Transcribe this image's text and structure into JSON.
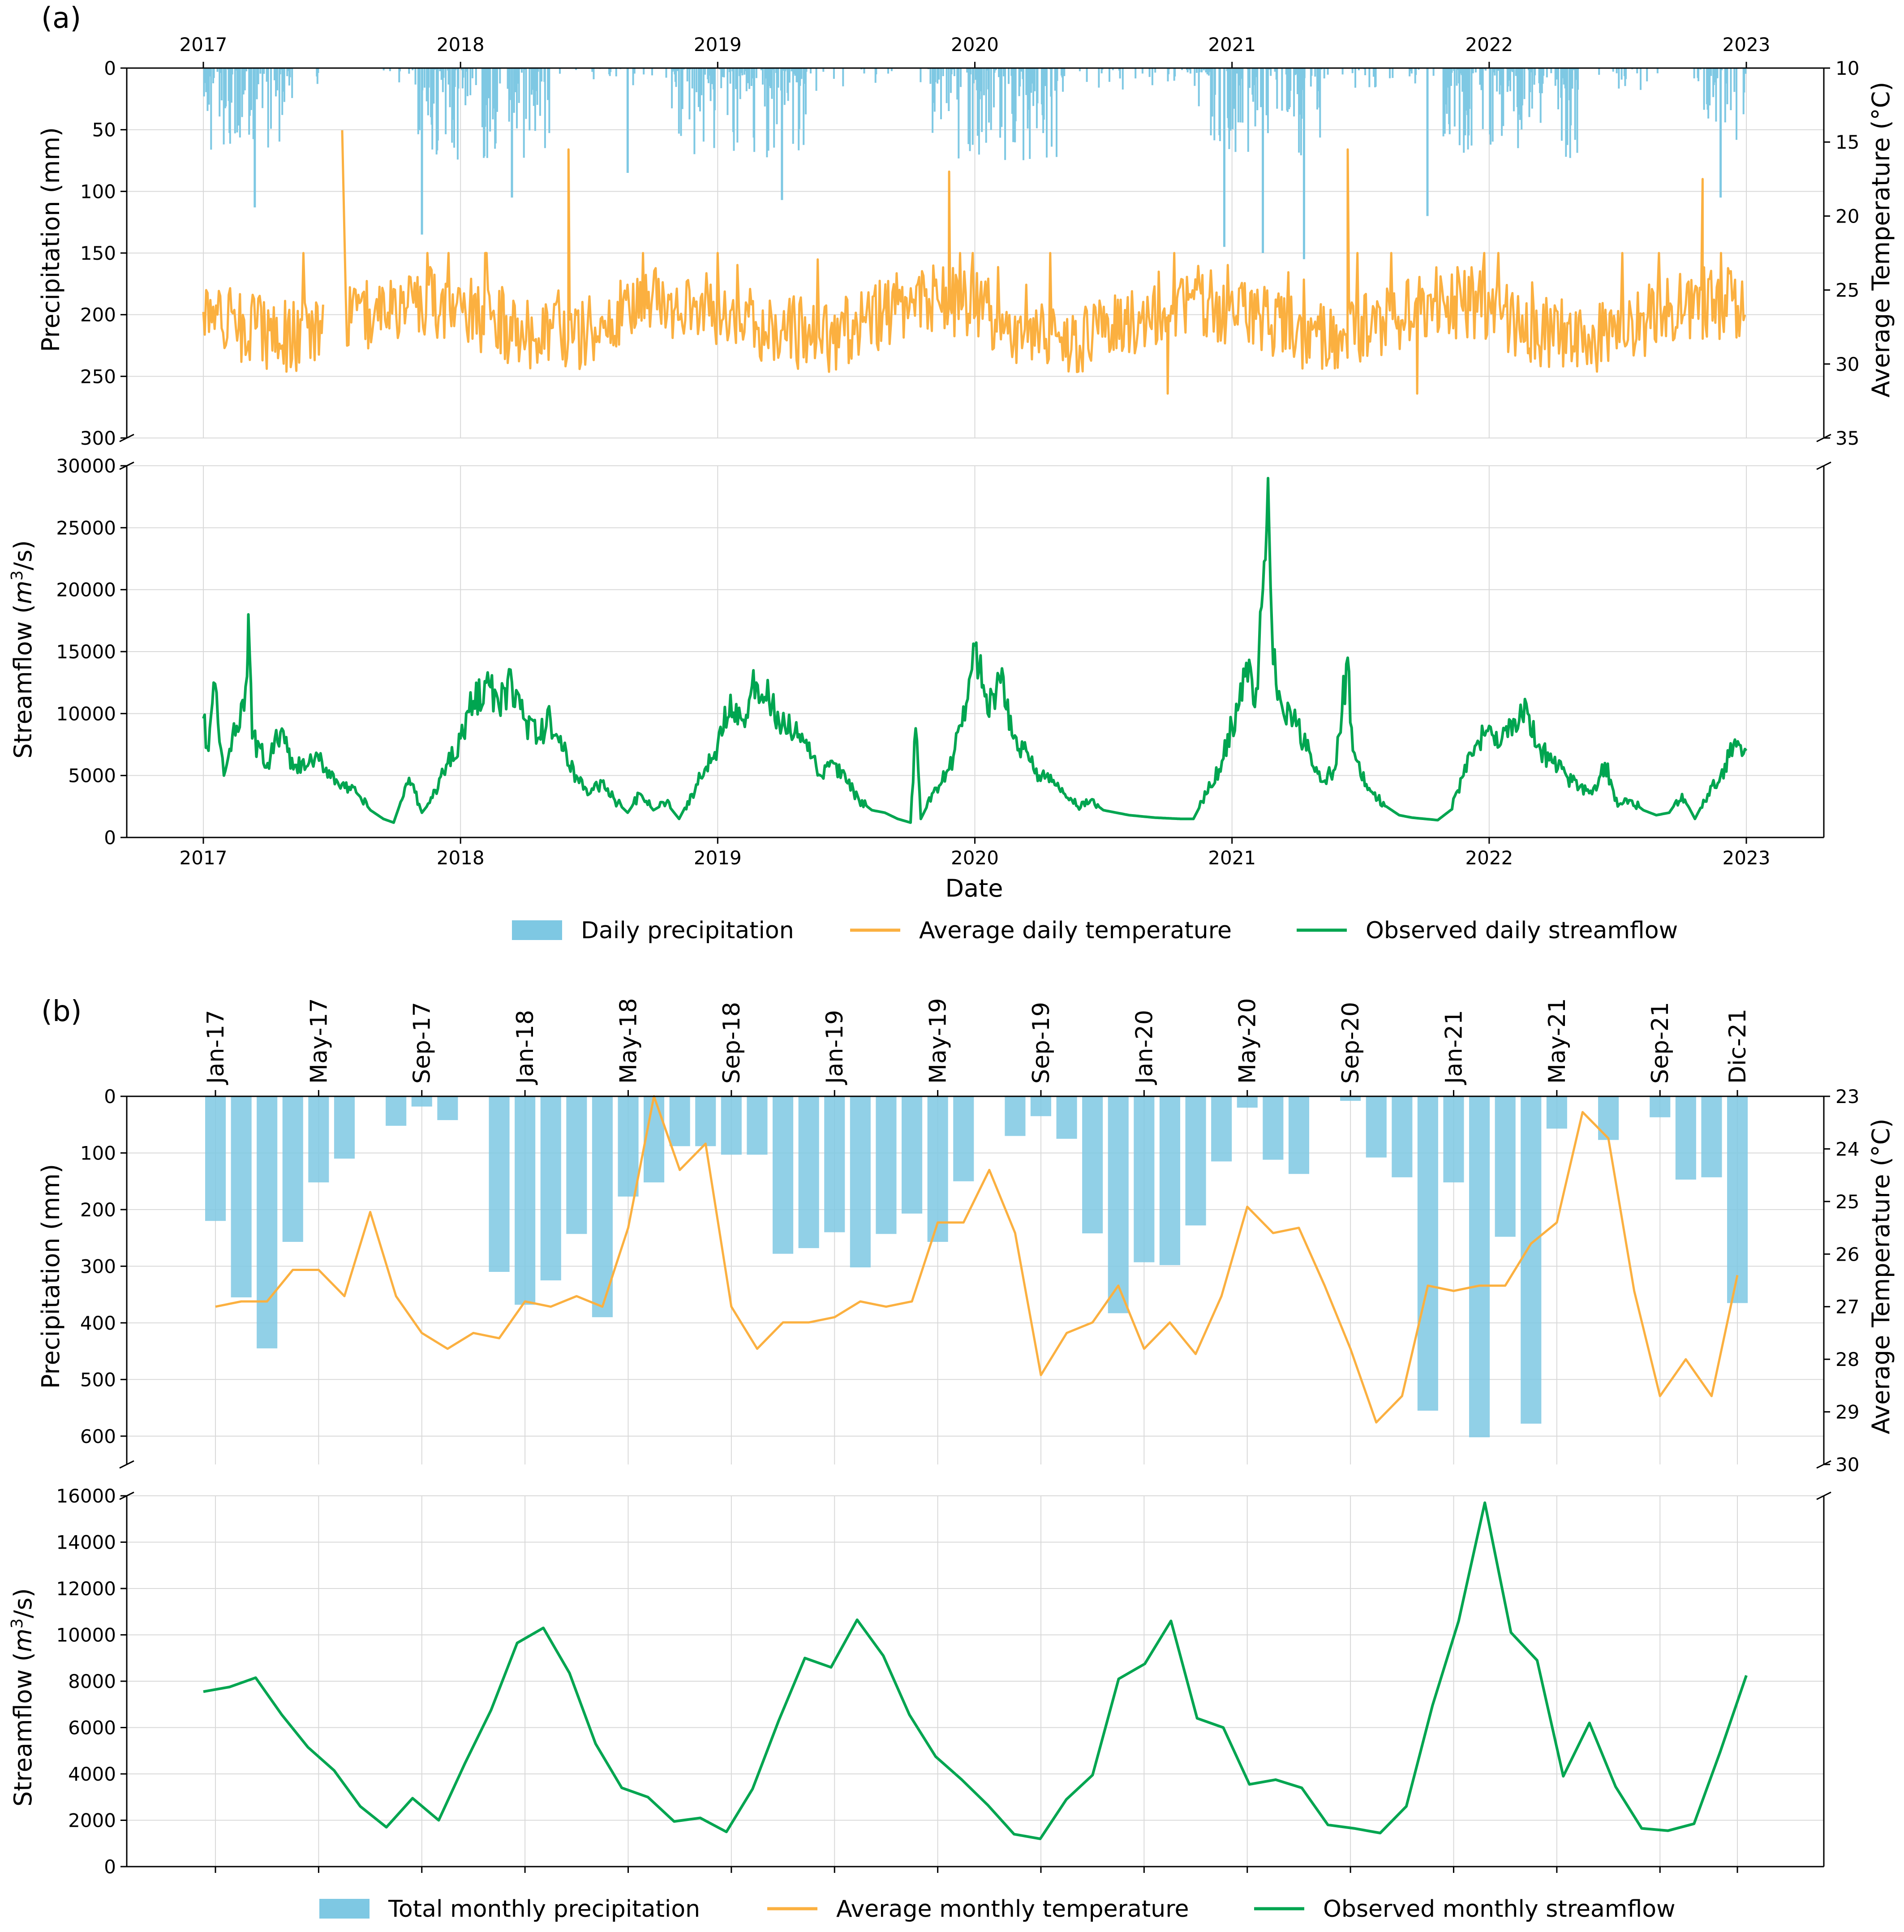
{
  "chart_data": [
    {
      "panel_label": "(a)",
      "type": "line",
      "title": "",
      "top_axis_years": [
        "2017",
        "2018",
        "2019",
        "2020",
        "2021",
        "2022",
        "2023"
      ],
      "precipitation": {
        "type": "bar",
        "ylabel": "Precipitation (mm)",
        "ylim": [
          0,
          300
        ],
        "inverted": true,
        "yticks": [
          0,
          50,
          100,
          150,
          200,
          250,
          300
        ],
        "color": "#7ec8e3",
        "notable_events": [
          {
            "date": 2017.2,
            "value": 113
          },
          {
            "date": 2017.85,
            "value": 135
          },
          {
            "date": 2018.2,
            "value": 105
          },
          {
            "date": 2018.65,
            "value": 85
          },
          {
            "date": 2019.25,
            "value": 107
          },
          {
            "date": 2020.15,
            "value": 60
          },
          {
            "date": 2020.97,
            "value": 145
          },
          {
            "date": 2021.12,
            "value": 150
          },
          {
            "date": 2021.28,
            "value": 155
          },
          {
            "date": 2021.76,
            "value": 120
          },
          {
            "date": 2022.9,
            "value": 105
          }
        ]
      },
      "temperature": {
        "ylabel": "Average Temperature (°C)",
        "ylim": [
          10,
          35
        ],
        "yticks": [
          10,
          15,
          20,
          25,
          30,
          35
        ],
        "color": "#fbb040",
        "typical_range": [
          24,
          30
        ],
        "notable_events": [
          {
            "date": 2017.54,
            "value": 14.2
          },
          {
            "date": 2018.42,
            "value": 15.5
          },
          {
            "date": 2019.9,
            "value": 17
          },
          {
            "date": 2021.45,
            "value": 15.5
          },
          {
            "date": 2022.83,
            "value": 17.5
          },
          {
            "date": 2020.75,
            "value": 32
          },
          {
            "date": 2021.72,
            "value": 32
          }
        ]
      },
      "streamflow": {
        "ylabel": "Streamflow (m³/s)",
        "ylabel_base": "Streamflow (",
        "ylabel_unit_m": "m",
        "ylabel_unit_exp": "3",
        "ylabel_unit_tail": "/s)",
        "xlabel": "Date",
        "ylim": [
          0,
          30000
        ],
        "yticks": [
          0,
          5000,
          10000,
          15000,
          20000,
          25000,
          30000
        ],
        "color": "#00a550",
        "xticks": [
          "2017",
          "2018",
          "2019",
          "2020",
          "2021",
          "2022",
          "2023"
        ],
        "anchors": [
          [
            2017.0,
            9600
          ],
          [
            2017.02,
            7000
          ],
          [
            2017.04,
            12500
          ],
          [
            2017.08,
            5000
          ],
          [
            2017.13,
            9000
          ],
          [
            2017.17,
            13000
          ],
          [
            2017.175,
            18000
          ],
          [
            2017.19,
            8000
          ],
          [
            2017.25,
            6000
          ],
          [
            2017.3,
            8500
          ],
          [
            2017.35,
            5500
          ],
          [
            2017.45,
            6200
          ],
          [
            2017.55,
            4000
          ],
          [
            2017.6,
            3500
          ],
          [
            2017.65,
            2200
          ],
          [
            2017.7,
            1500
          ],
          [
            2017.74,
            1200
          ],
          [
            2017.8,
            4800
          ],
          [
            2017.85,
            2000
          ],
          [
            2017.88,
            2800
          ],
          [
            2017.95,
            6000
          ],
          [
            2018.0,
            8000
          ],
          [
            2018.05,
            11000
          ],
          [
            2018.1,
            12500
          ],
          [
            2018.15,
            10500
          ],
          [
            2018.2,
            12500
          ],
          [
            2018.25,
            9500
          ],
          [
            2018.3,
            8000
          ],
          [
            2018.35,
            9500
          ],
          [
            2018.4,
            7000
          ],
          [
            2018.45,
            5000
          ],
          [
            2018.5,
            3500
          ],
          [
            2018.55,
            4500
          ],
          [
            2018.6,
            3000
          ],
          [
            2018.65,
            2000
          ],
          [
            2018.7,
            3500
          ],
          [
            2018.75,
            2200
          ],
          [
            2018.8,
            2800
          ],
          [
            2018.85,
            1500
          ],
          [
            2018.9,
            3500
          ],
          [
            2018.95,
            5500
          ],
          [
            2019.0,
            7500
          ],
          [
            2019.05,
            11500
          ],
          [
            2019.1,
            9500
          ],
          [
            2019.15,
            12500
          ],
          [
            2019.2,
            11000
          ],
          [
            2019.25,
            9000
          ],
          [
            2019.3,
            8500
          ],
          [
            2019.35,
            7000
          ],
          [
            2019.4,
            5000
          ],
          [
            2019.45,
            6000
          ],
          [
            2019.5,
            4500
          ],
          [
            2019.55,
            3000
          ],
          [
            2019.6,
            2200
          ],
          [
            2019.65,
            2000
          ],
          [
            2019.7,
            1500
          ],
          [
            2019.75,
            1200
          ],
          [
            2019.77,
            8800
          ],
          [
            2019.79,
            1500
          ],
          [
            2019.85,
            4000
          ],
          [
            2019.9,
            5500
          ],
          [
            2019.95,
            9000
          ],
          [
            2020.0,
            15500
          ],
          [
            2020.05,
            10000
          ],
          [
            2020.1,
            12500
          ],
          [
            2020.15,
            8000
          ],
          [
            2020.2,
            7000
          ],
          [
            2020.25,
            5000
          ],
          [
            2020.3,
            4500
          ],
          [
            2020.35,
            3500
          ],
          [
            2020.4,
            2500
          ],
          [
            2020.45,
            3000
          ],
          [
            2020.5,
            2200
          ],
          [
            2020.55,
            2000
          ],
          [
            2020.6,
            1800
          ],
          [
            2020.65,
            1700
          ],
          [
            2020.7,
            1600
          ],
          [
            2020.8,
            1500
          ],
          [
            2020.85,
            1500
          ],
          [
            2020.9,
            3500
          ],
          [
            2020.95,
            5500
          ],
          [
            2021.0,
            9000
          ],
          [
            2021.05,
            13000
          ],
          [
            2021.1,
            12000
          ],
          [
            2021.12,
            20000
          ],
          [
            2021.14,
            29000
          ],
          [
            2021.16,
            14000
          ],
          [
            2021.2,
            10000
          ],
          [
            2021.25,
            9000
          ],
          [
            2021.3,
            7000
          ],
          [
            2021.35,
            4500
          ],
          [
            2021.4,
            5500
          ],
          [
            2021.45,
            14500
          ],
          [
            2021.47,
            7000
          ],
          [
            2021.5,
            5000
          ],
          [
            2021.55,
            3500
          ],
          [
            2021.6,
            2500
          ],
          [
            2021.65,
            1800
          ],
          [
            2021.7,
            1600
          ],
          [
            2021.75,
            1500
          ],
          [
            2021.8,
            1400
          ],
          [
            2021.85,
            2200
          ],
          [
            2021.9,
            5000
          ],
          [
            2021.95,
            7500
          ],
          [
            2022.0,
            9000
          ],
          [
            2022.05,
            8000
          ],
          [
            2022.1,
            9500
          ],
          [
            2022.15,
            10000
          ],
          [
            2022.2,
            7000
          ],
          [
            2022.25,
            6000
          ],
          [
            2022.3,
            5000
          ],
          [
            2022.35,
            4000
          ],
          [
            2022.4,
            3500
          ],
          [
            2022.45,
            6000
          ],
          [
            2022.5,
            2500
          ],
          [
            2022.55,
            3000
          ],
          [
            2022.6,
            2200
          ],
          [
            2022.65,
            1800
          ],
          [
            2022.7,
            2000
          ],
          [
            2022.75,
            3500
          ],
          [
            2022.8,
            1500
          ],
          [
            2022.85,
            3500
          ],
          [
            2022.9,
            5000
          ],
          [
            2022.95,
            7500
          ],
          [
            2023.0,
            7000
          ]
        ]
      },
      "legend": [
        {
          "label": "Daily precipitation",
          "kind": "patch",
          "color": "#7ec8e3"
        },
        {
          "label": "Average daily temperature",
          "kind": "line",
          "color": "#fbb040"
        },
        {
          "label": "Observed daily streamflow",
          "kind": "line",
          "color": "#00a550"
        }
      ]
    },
    {
      "panel_label": "(b)",
      "type": "bar",
      "title": "",
      "top_axis_labels": [
        "Jan-17",
        "May-17",
        "Sep-17",
        "Jan-18",
        "May-18",
        "Sep-18",
        "Jan-19",
        "May-19",
        "Sep-19",
        "Jan-20",
        "May-20",
        "Sep-20",
        "Jan-21",
        "May-21",
        "Sep-21",
        "Dic-21"
      ],
      "top_axis_positions": [
        0,
        4,
        8,
        12,
        16,
        20,
        24,
        28,
        32,
        36,
        40,
        44,
        48,
        52,
        56,
        59
      ],
      "precipitation": {
        "ylabel": "Precipitation (mm)",
        "ylim": [
          0,
          650
        ],
        "inverted": true,
        "yticks": [
          0,
          100,
          200,
          300,
          400,
          500,
          600
        ],
        "color": "#7ec8e3",
        "values": [
          220,
          355,
          445,
          257,
          152,
          110,
          0,
          52,
          18,
          42,
          0,
          310,
          368,
          325,
          243,
          390,
          177,
          152,
          88,
          88,
          103,
          103,
          278,
          268,
          240,
          302,
          243,
          207,
          257,
          150,
          0,
          70,
          35,
          75,
          242,
          383,
          293,
          298,
          228,
          115,
          20,
          112,
          137,
          0,
          8,
          108,
          143,
          555,
          152,
          602,
          248,
          578,
          57,
          0,
          77,
          0,
          37,
          147,
          143,
          365
        ]
      },
      "temperature": {
        "ylabel": "Average Temperature (°C)",
        "ylim": [
          23,
          30
        ],
        "yticks": [
          23,
          24,
          25,
          26,
          27,
          28,
          29,
          30
        ],
        "color": "#fbb040",
        "values": [
          27.0,
          26.9,
          26.9,
          26.3,
          26.3,
          26.8,
          25.2,
          26.8,
          27.5,
          27.8,
          27.5,
          27.6,
          26.9,
          27.0,
          26.8,
          27.0,
          25.5,
          23.0,
          24.4,
          23.9,
          27.0,
          27.8,
          27.3,
          27.3,
          27.2,
          26.9,
          27.0,
          26.9,
          25.4,
          25.4,
          24.4,
          25.6,
          28.3,
          27.5,
          27.3,
          26.6,
          27.8,
          27.3,
          27.9,
          26.8,
          25.1,
          25.6,
          25.5,
          26.6,
          27.8,
          29.2,
          28.7,
          26.6,
          26.7,
          26.6,
          26.6,
          25.8,
          25.4,
          23.3,
          23.8,
          26.7,
          28.7,
          28.0,
          28.7,
          26.4
        ]
      },
      "streamflow": {
        "ylabel": "Streamflow (m³/s)",
        "ylabel_base": "Streamflow (",
        "ylabel_unit_m": "m",
        "ylabel_unit_exp": "3",
        "ylabel_unit_tail": "/s)",
        "ylim": [
          0,
          16000
        ],
        "yticks": [
          0,
          2000,
          4000,
          6000,
          8000,
          10000,
          12000,
          14000,
          16000
        ],
        "color": "#00a550",
        "values": [
          7550,
          7750,
          8150,
          6550,
          5150,
          4150,
          2600,
          1700,
          2950,
          2000,
          4450,
          6750,
          9650,
          10300,
          8350,
          5300,
          3400,
          3000,
          1950,
          2100,
          1500,
          3350,
          6300,
          9000,
          8600,
          10650,
          9100,
          6550,
          4750,
          3750,
          2650,
          1400,
          1200,
          2900,
          3950,
          8100,
          8750,
          10600,
          6400,
          6000,
          3550,
          3750,
          3400,
          1800,
          1650,
          1450,
          2600,
          6950,
          10600,
          15700,
          10100,
          8900,
          3900,
          6200,
          3450,
          1650,
          1550,
          1850,
          4950,
          8250
        ]
      },
      "legend": [
        {
          "label": "Total monthly precipitation",
          "kind": "patch",
          "color": "#7ec8e3"
        },
        {
          "label": "Average monthly temperature",
          "kind": "line",
          "color": "#fbb040"
        },
        {
          "label": "Observed monthly streamflow",
          "kind": "line",
          "color": "#00a550"
        }
      ]
    }
  ]
}
